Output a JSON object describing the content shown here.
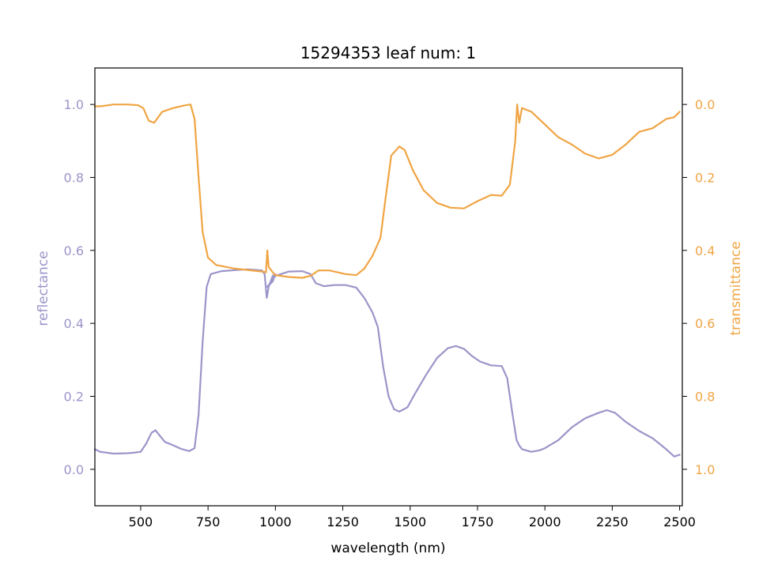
{
  "chart_data": {
    "type": "line",
    "title": "15294353 leaf num: 1",
    "xlabel": "wavelength (nm)",
    "xlim": [
      330,
      2510
    ],
    "x_ticks": [
      500,
      750,
      1000,
      1250,
      1500,
      1750,
      2000,
      2250,
      2500
    ],
    "x_tick_labels": [
      "500",
      "750",
      "1000",
      "1250",
      "1500",
      "1750",
      "2000",
      "2250",
      "2500"
    ],
    "left_axis": {
      "label": "reflectance",
      "lim": [
        -0.1,
        1.1
      ],
      "ticks": [
        0.0,
        0.2,
        0.4,
        0.6,
        0.8,
        1.0
      ],
      "tick_labels": [
        "0.0",
        "0.2",
        "0.4",
        "0.6",
        "0.8",
        "1.0"
      ],
      "color": "#9b95c9"
    },
    "right_axis": {
      "label": "transmittance",
      "lim": [
        1.1,
        -0.1
      ],
      "inverted": true,
      "ticks": [
        0.0,
        0.2,
        0.4,
        0.6,
        0.8,
        1.0
      ],
      "tick_labels": [
        "0.0",
        "0.2",
        "0.4",
        "0.6",
        "0.8",
        "1.0"
      ],
      "color": "#f0a544"
    },
    "grid": false,
    "series": [
      {
        "axis": "left",
        "color": "#9b95c9",
        "points": [
          [
            330,
            0.055
          ],
          [
            350,
            0.048
          ],
          [
            400,
            0.043
          ],
          [
            450,
            0.044
          ],
          [
            480,
            0.046
          ],
          [
            500,
            0.048
          ],
          [
            520,
            0.07
          ],
          [
            540,
            0.1
          ],
          [
            555,
            0.107
          ],
          [
            570,
            0.093
          ],
          [
            590,
            0.075
          ],
          [
            620,
            0.066
          ],
          [
            650,
            0.056
          ],
          [
            680,
            0.05
          ],
          [
            700,
            0.058
          ],
          [
            715,
            0.15
          ],
          [
            730,
            0.35
          ],
          [
            745,
            0.5
          ],
          [
            760,
            0.535
          ],
          [
            800,
            0.543
          ],
          [
            850,
            0.546
          ],
          [
            900,
            0.548
          ],
          [
            950,
            0.545
          ],
          [
            960,
            0.535
          ],
          [
            968,
            0.47
          ],
          [
            975,
            0.5
          ],
          [
            990,
            0.53
          ],
          [
            1000,
            0.535
          ],
          [
            990,
            0.515
          ],
          [
            970,
            0.5
          ],
          [
            1000,
            0.53
          ],
          [
            1050,
            0.542
          ],
          [
            1100,
            0.543
          ],
          [
            1130,
            0.535
          ],
          [
            1150,
            0.51
          ],
          [
            1180,
            0.502
          ],
          [
            1220,
            0.505
          ],
          [
            1260,
            0.505
          ],
          [
            1300,
            0.498
          ],
          [
            1330,
            0.47
          ],
          [
            1360,
            0.43
          ],
          [
            1380,
            0.39
          ],
          [
            1400,
            0.28
          ],
          [
            1420,
            0.2
          ],
          [
            1440,
            0.165
          ],
          [
            1460,
            0.158
          ],
          [
            1490,
            0.17
          ],
          [
            1520,
            0.21
          ],
          [
            1560,
            0.26
          ],
          [
            1600,
            0.305
          ],
          [
            1640,
            0.332
          ],
          [
            1670,
            0.338
          ],
          [
            1700,
            0.33
          ],
          [
            1730,
            0.31
          ],
          [
            1760,
            0.295
          ],
          [
            1800,
            0.285
          ],
          [
            1840,
            0.283
          ],
          [
            1860,
            0.25
          ],
          [
            1880,
            0.15
          ],
          [
            1895,
            0.08
          ],
          [
            1905,
            0.065
          ],
          [
            1915,
            0.055
          ],
          [
            1950,
            0.048
          ],
          [
            1980,
            0.052
          ],
          [
            2000,
            0.058
          ],
          [
            2050,
            0.08
          ],
          [
            2100,
            0.115
          ],
          [
            2150,
            0.14
          ],
          [
            2200,
            0.155
          ],
          [
            2230,
            0.162
          ],
          [
            2260,
            0.155
          ],
          [
            2300,
            0.13
          ],
          [
            2350,
            0.105
          ],
          [
            2400,
            0.085
          ],
          [
            2450,
            0.055
          ],
          [
            2480,
            0.035
          ],
          [
            2500,
            0.04
          ]
        ]
      },
      {
        "axis": "right",
        "color": "#f0a544",
        "points": [
          [
            330,
            0.005
          ],
          [
            350,
            0.005
          ],
          [
            400,
            0.0
          ],
          [
            450,
            0.0
          ],
          [
            490,
            0.002
          ],
          [
            510,
            0.01
          ],
          [
            530,
            0.045
          ],
          [
            550,
            0.05
          ],
          [
            580,
            0.02
          ],
          [
            620,
            0.01
          ],
          [
            660,
            0.003
          ],
          [
            685,
            0.0
          ],
          [
            700,
            0.04
          ],
          [
            715,
            0.2
          ],
          [
            730,
            0.35
          ],
          [
            750,
            0.42
          ],
          [
            780,
            0.44
          ],
          [
            850,
            0.45
          ],
          [
            950,
            0.458
          ],
          [
            965,
            0.46
          ],
          [
            970,
            0.4
          ],
          [
            975,
            0.445
          ],
          [
            990,
            0.46
          ],
          [
            1000,
            0.468
          ],
          [
            1050,
            0.473
          ],
          [
            1100,
            0.475
          ],
          [
            1130,
            0.47
          ],
          [
            1160,
            0.455
          ],
          [
            1200,
            0.455
          ],
          [
            1260,
            0.465
          ],
          [
            1300,
            0.468
          ],
          [
            1330,
            0.45
          ],
          [
            1360,
            0.415
          ],
          [
            1390,
            0.365
          ],
          [
            1410,
            0.25
          ],
          [
            1430,
            0.14
          ],
          [
            1460,
            0.115
          ],
          [
            1480,
            0.125
          ],
          [
            1510,
            0.18
          ],
          [
            1550,
            0.235
          ],
          [
            1600,
            0.27
          ],
          [
            1650,
            0.283
          ],
          [
            1700,
            0.285
          ],
          [
            1750,
            0.265
          ],
          [
            1800,
            0.248
          ],
          [
            1840,
            0.25
          ],
          [
            1870,
            0.22
          ],
          [
            1890,
            0.1
          ],
          [
            1897,
            0.0
          ],
          [
            1905,
            0.05
          ],
          [
            1915,
            0.01
          ],
          [
            1950,
            0.02
          ],
          [
            2000,
            0.055
          ],
          [
            2050,
            0.09
          ],
          [
            2100,
            0.11
          ],
          [
            2150,
            0.135
          ],
          [
            2200,
            0.148
          ],
          [
            2250,
            0.138
          ],
          [
            2300,
            0.11
          ],
          [
            2350,
            0.075
          ],
          [
            2400,
            0.065
          ],
          [
            2450,
            0.04
          ],
          [
            2480,
            0.035
          ],
          [
            2500,
            0.02
          ]
        ]
      }
    ]
  }
}
